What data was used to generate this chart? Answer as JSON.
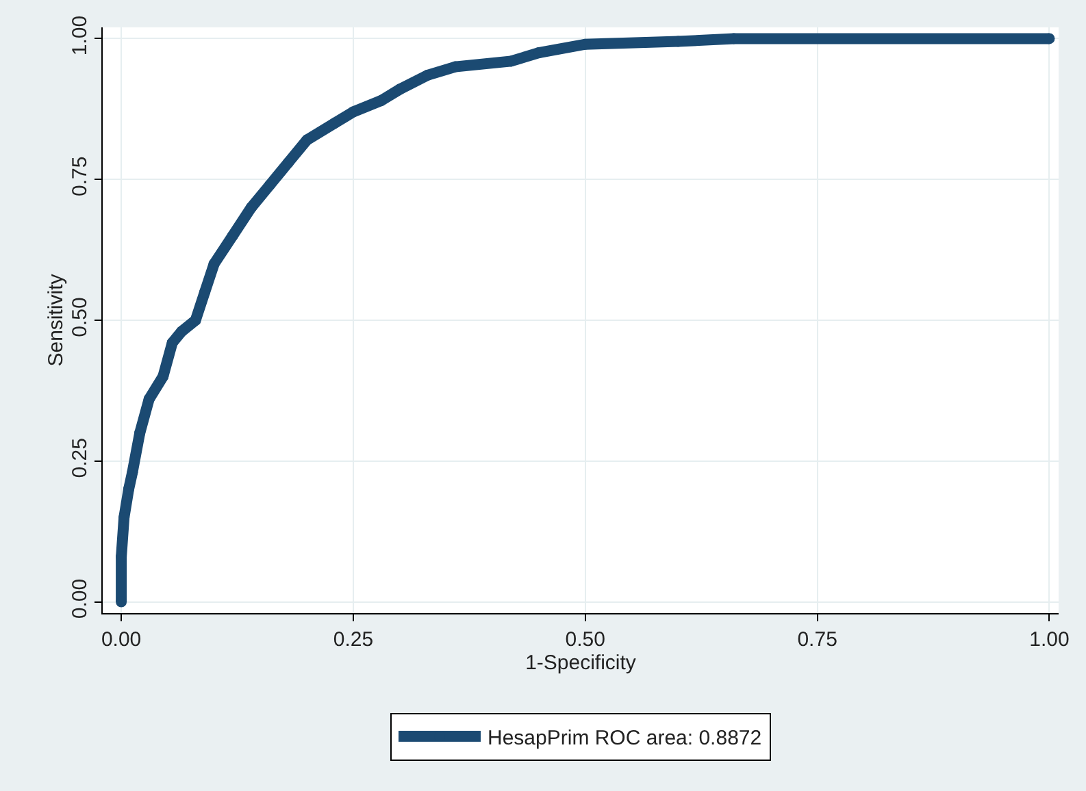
{
  "chart_data": {
    "type": "line",
    "xlabel": "1-Specificity",
    "ylabel": "Sensitivity",
    "x": [
      0,
      0,
      0.003,
      0.008,
      0.012,
      0.02,
      0.03,
      0.045,
      0.055,
      0.065,
      0.08,
      0.09,
      0.1,
      0.12,
      0.14,
      0.16,
      0.18,
      0.2,
      0.23,
      0.25,
      0.28,
      0.3,
      0.33,
      0.36,
      0.42,
      0.45,
      0.5,
      0.6,
      0.66,
      1
    ],
    "series": [
      {
        "name": "HesapPrim ROC area: 0.8872",
        "color": "#1b4a72",
        "values": [
          0,
          0.08,
          0.15,
          0.2,
          0.23,
          0.3,
          0.36,
          0.4,
          0.46,
          0.48,
          0.5,
          0.55,
          0.6,
          0.65,
          0.7,
          0.74,
          0.78,
          0.82,
          0.85,
          0.87,
          0.89,
          0.91,
          0.935,
          0.95,
          0.96,
          0.975,
          0.99,
          0.995,
          1,
          1
        ]
      }
    ],
    "xlim": [
      -0.02,
      1.01
    ],
    "ylim": [
      -0.02,
      1.02
    ],
    "xticks": [
      {
        "value": 0,
        "label": "0.00"
      },
      0.25,
      {
        "value": 0.5,
        "label": "0.50"
      },
      0.75,
      {
        "value": 1,
        "label": "1.00"
      }
    ],
    "yticks": [
      {
        "value": 0,
        "label": "0.00"
      },
      0.25,
      {
        "value": 0.5,
        "label": "0.50"
      },
      0.75,
      {
        "value": 1,
        "label": "1.00"
      }
    ],
    "grid": true,
    "legend": "bottom",
    "marker": "circle",
    "line_style": "solid"
  }
}
